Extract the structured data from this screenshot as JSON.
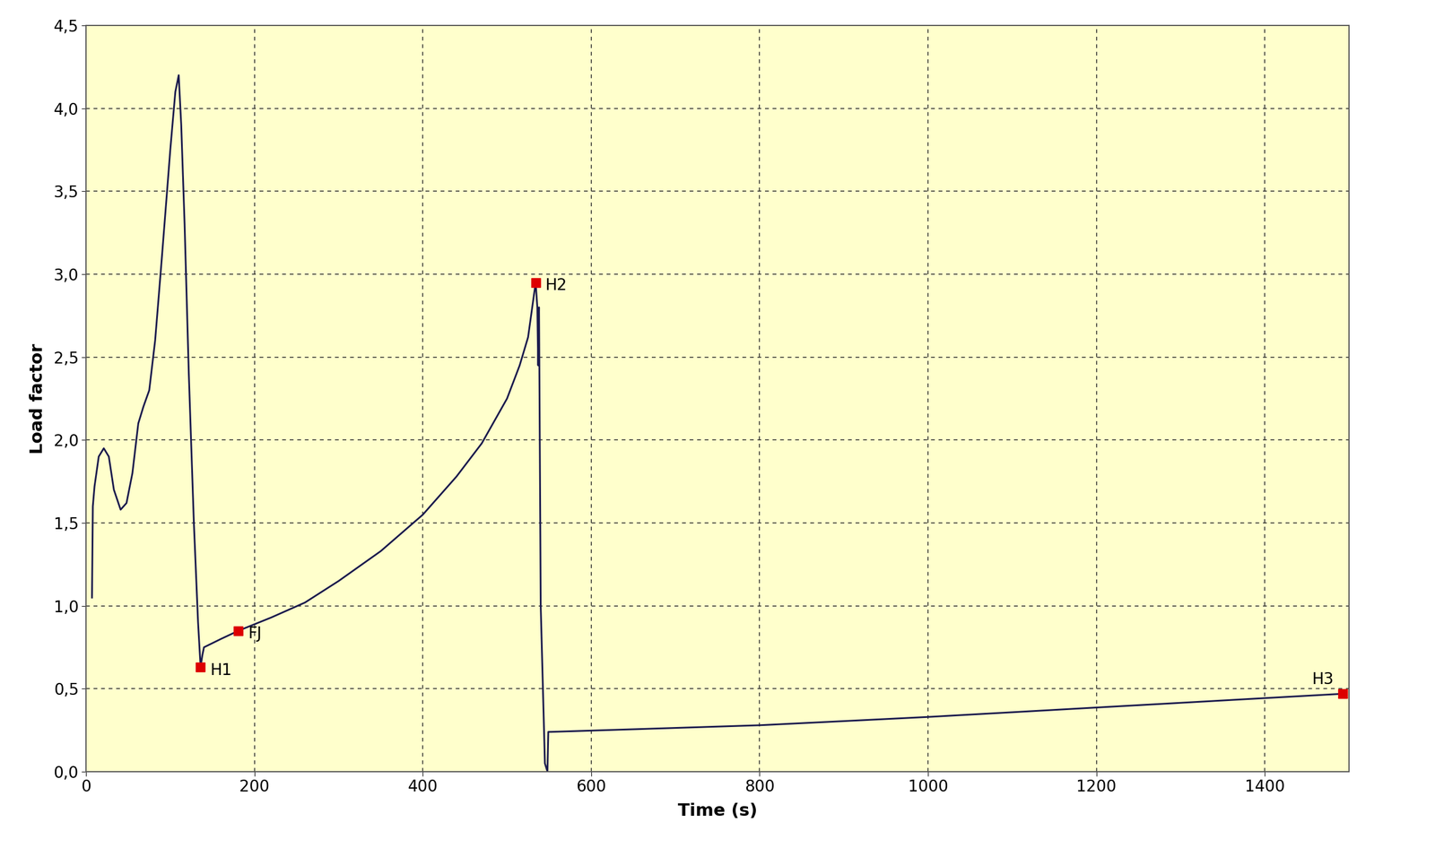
{
  "chart_data": {
    "type": "line",
    "x_label": "Time (s)",
    "y_label": "Load factor",
    "x": [
      7,
      8,
      10,
      15,
      21,
      27,
      33,
      41,
      48,
      55,
      62,
      68,
      75,
      82,
      90,
      100,
      106,
      110,
      113,
      117,
      122,
      128,
      133,
      136,
      138,
      140,
      160,
      181,
      220,
      260,
      300,
      350,
      400,
      440,
      470,
      500,
      515,
      525,
      534,
      536,
      537,
      538,
      540,
      545,
      548,
      549,
      552,
      800,
      1000,
      1493
    ],
    "series": [
      {
        "name": "Load factor",
        "color": "#1a1a4d",
        "line_style": "solid",
        "values": [
          1.05,
          1.6,
          1.72,
          1.9,
          1.95,
          1.9,
          1.7,
          1.58,
          1.62,
          1.8,
          2.1,
          2.2,
          2.3,
          2.6,
          3.1,
          3.75,
          4.1,
          4.2,
          3.9,
          3.3,
          2.4,
          1.5,
          0.9,
          0.63,
          0.7,
          0.75,
          0.8,
          0.85,
          0.93,
          1.02,
          1.15,
          1.33,
          1.55,
          1.78,
          1.98,
          2.25,
          2.45,
          2.62,
          2.95,
          2.8,
          2.45,
          2.8,
          1.0,
          0.05,
          0.0,
          0.24,
          0.24,
          0.28,
          0.33,
          0.47
        ]
      }
    ],
    "annotations": [
      {
        "label": "H1",
        "x": 136,
        "y": 0.63,
        "color": "#dd0000",
        "marker": "square"
      },
      {
        "label": "FJ",
        "x": 181,
        "y": 0.85,
        "color": "#dd0000",
        "marker": "square"
      },
      {
        "label": "H2",
        "x": 534,
        "y": 2.95,
        "color": "#dd0000",
        "marker": "square"
      },
      {
        "label": "H3",
        "x": 1493,
        "y": 0.47,
        "color": "#dd0000",
        "marker": "square"
      }
    ],
    "xlim": [
      0,
      1500
    ],
    "xticks": [
      0,
      200,
      400,
      600,
      800,
      1000,
      1200,
      1400
    ],
    "ylim": [
      0,
      4.5
    ],
    "yticks": [
      {
        "value": 0,
        "label": "0,0"
      },
      {
        "value": 0.5,
        "label": "0,5"
      },
      {
        "value": 1,
        "label": "1,0"
      },
      {
        "value": 1.5,
        "label": "1,5"
      },
      {
        "value": 2,
        "label": "2,0"
      },
      {
        "value": 2.5,
        "label": "2,5"
      },
      {
        "value": 3,
        "label": "3,0"
      },
      {
        "value": 3.5,
        "label": "3,5"
      },
      {
        "value": 4,
        "label": "4,0"
      },
      {
        "value": 4.5,
        "label": "4,5"
      }
    ],
    "grid": true
  }
}
